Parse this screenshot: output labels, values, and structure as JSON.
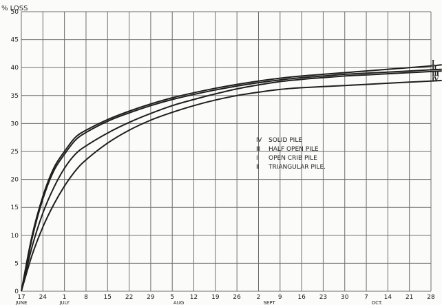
{
  "chart_data": {
    "type": "line",
    "ylabel": "% LOSS",
    "ylim": [
      0,
      50
    ],
    "yticks": [
      0,
      5,
      10,
      15,
      20,
      25,
      30,
      35,
      40,
      45,
      50
    ],
    "xticks": [
      "17",
      "24",
      "1",
      "8",
      "15",
      "22",
      "29",
      "5",
      "12",
      "19",
      "26",
      "2",
      "9",
      "16",
      "23",
      "30",
      "7",
      "14",
      "21",
      "28"
    ],
    "months": [
      {
        "label": "JUNE",
        "at": 0
      },
      {
        "label": "JULY",
        "at": 2
      },
      {
        "label": "AUG",
        "at": 7.3
      },
      {
        "label": "SEPT",
        "at": 11.5
      },
      {
        "label": "OCT.",
        "at": 16.5
      }
    ],
    "grid": true,
    "legend_position": "center-right",
    "legend": [
      {
        "numeral": "Ⅳ",
        "text": "SOLID PILE"
      },
      {
        "numeral": "Ⅲ",
        "text": "HALF OPEN PILE"
      },
      {
        "numeral": "Ⅰ",
        "text": "OPEN CRIB PILE"
      },
      {
        "numeral": "Ⅱ",
        "text": "TRIANGULAR PILE."
      }
    ],
    "series": [
      {
        "name": "I",
        "x": [
          0,
          0.5,
          1,
          1.5,
          2,
          2.5,
          3,
          4,
          5,
          6,
          7,
          8,
          9,
          10,
          11,
          12,
          13,
          14,
          15,
          16,
          17,
          18,
          19,
          19.5
        ],
        "y": [
          0,
          10,
          17,
          22,
          25,
          27.5,
          28.8,
          30.7,
          32.2,
          33.5,
          34.6,
          35.5,
          36.3,
          37,
          37.6,
          38.1,
          38.5,
          38.8,
          39.1,
          39.4,
          39.7,
          40,
          40.3,
          40.5
        ]
      },
      {
        "name": "II",
        "x": [
          0,
          0.5,
          1,
          1.5,
          2,
          2.5,
          3,
          4,
          5,
          6,
          7,
          8,
          9,
          10,
          11,
          12,
          13,
          14,
          15,
          16,
          17,
          18,
          19,
          19.5
        ],
        "y": [
          0,
          9.5,
          16.5,
          21.5,
          24.5,
          27,
          28.4,
          30.4,
          31.9,
          33.2,
          34.3,
          35.2,
          36,
          36.7,
          37.3,
          37.8,
          38.2,
          38.5,
          38.8,
          39,
          39.2,
          39.4,
          39.6,
          39.7
        ]
      },
      {
        "name": "III",
        "x": [
          0,
          0.5,
          1,
          1.5,
          2,
          2.5,
          3,
          4,
          5,
          6,
          7,
          8,
          9,
          10,
          11,
          12,
          13,
          14,
          15,
          16,
          17,
          18,
          19,
          19.5
        ],
        "y": [
          0,
          8,
          14,
          18.5,
          22,
          24.5,
          26,
          28.3,
          30.2,
          31.8,
          33.2,
          34.3,
          35.3,
          36.2,
          36.9,
          37.5,
          37.9,
          38.2,
          38.5,
          38.7,
          38.9,
          39.1,
          39.3,
          39.4
        ]
      },
      {
        "name": "IV",
        "x": [
          0,
          0.5,
          1,
          1.5,
          2,
          2.5,
          3,
          4,
          5,
          6,
          7,
          8,
          9,
          10,
          11,
          12,
          13,
          14,
          15,
          16,
          17,
          18,
          19,
          19.5
        ],
        "y": [
          0,
          6.5,
          11.5,
          15.5,
          18.8,
          21.5,
          23.5,
          26.5,
          28.8,
          30.6,
          32,
          33.2,
          34.2,
          35,
          35.6,
          36.1,
          36.4,
          36.6,
          36.8,
          37,
          37.2,
          37.4,
          37.6,
          37.7
        ]
      }
    ],
    "end_labels": [
      "Ⅰ",
      "Ⅱ",
      "Ⅲ",
      "Ⅳ"
    ],
    "colors": {
      "line": "#1e1e1e",
      "grid": "#6c6c6c",
      "background": "#fbfbf9"
    }
  }
}
